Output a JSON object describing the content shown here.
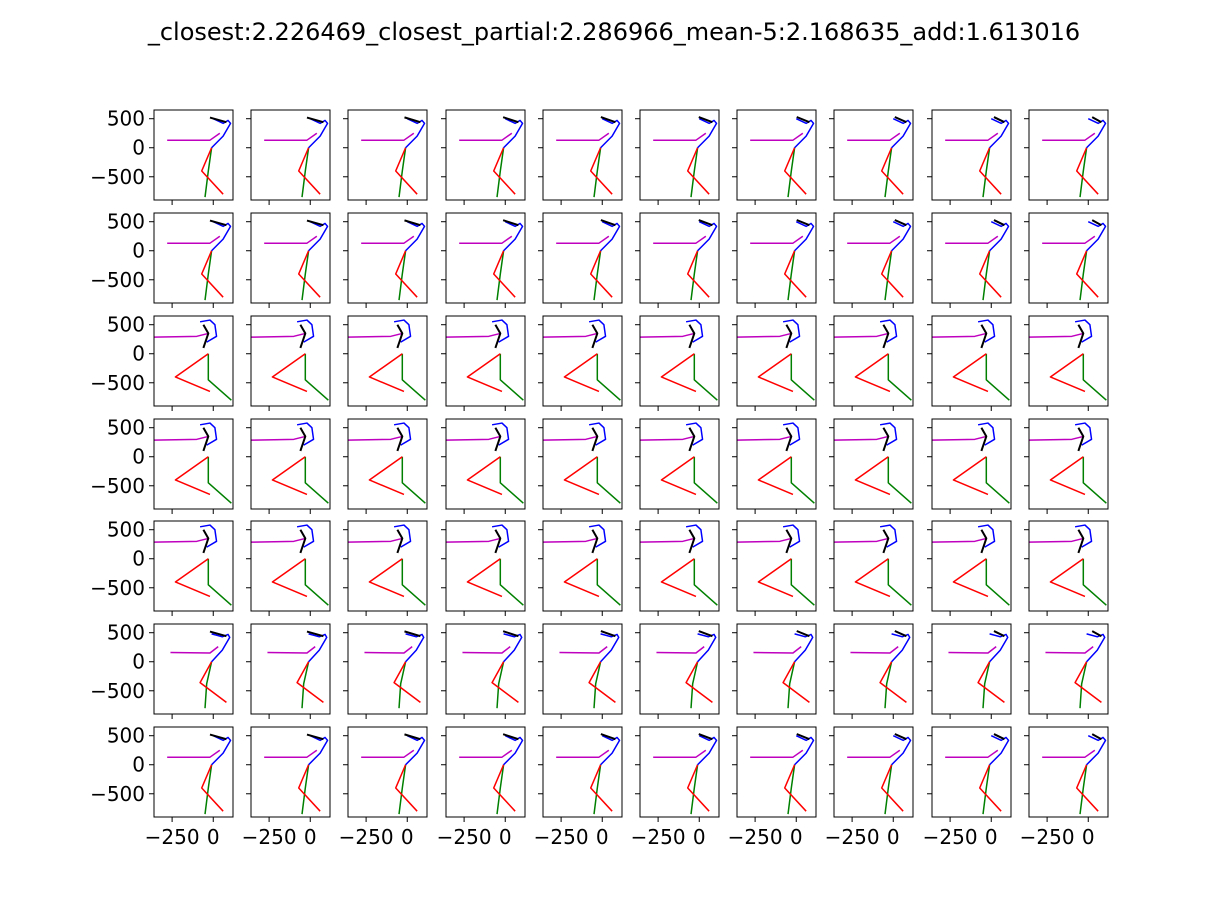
{
  "chart_data": {
    "type": "line",
    "title": "_closest:2.226469_closest_partial:2.286966_mean-5:2.168635_add:1.613016",
    "layout": "grid",
    "grid_rows": 7,
    "grid_cols": 10,
    "xlim": [
      -360,
      120
    ],
    "ylim": [
      -900,
      650
    ],
    "x_ticks": [
      -250,
      0
    ],
    "x_tick_labels": [
      "−250",
      "0"
    ],
    "y_ticks": [
      500,
      0,
      -500
    ],
    "y_tick_labels": [
      "500",
      "0",
      "−500"
    ],
    "grid": false,
    "legend": "none",
    "segment_colors": {
      "head": "#000000",
      "spine": "#0000ff",
      "arm": "#bf00bf",
      "leg_a": "#ff0000",
      "leg_b": "#008000"
    },
    "poses": {
      "A": {
        "spine": [
          [
            -10,
            0
          ],
          [
            60,
            200
          ],
          [
            105,
            420
          ],
          [
            90,
            470
          ],
          [
            60,
            420
          ],
          [
            0,
            500
          ]
        ],
        "arm": [
          [
            -280,
            130
          ],
          [
            -20,
            130
          ],
          [
            40,
            250
          ]
        ],
        "leg_a": [
          [
            -10,
            0
          ],
          [
            -70,
            -400
          ],
          [
            60,
            -800
          ]
        ],
        "leg_b": [
          [
            -10,
            0
          ],
          [
            -30,
            -400
          ],
          [
            -50,
            -850
          ]
        ],
        "head": [
          [
            80,
            440
          ],
          [
            -20,
            520
          ]
        ]
      },
      "B": {
        "spine": [
          [
            -80,
            550
          ],
          [
            -20,
            580
          ],
          [
            10,
            500
          ],
          [
            20,
            300
          ],
          [
            -40,
            200
          ]
        ],
        "arm": [
          [
            -450,
            280
          ],
          [
            -100,
            300
          ],
          [
            -30,
            350
          ]
        ],
        "leg_a": [
          [
            -30,
            0
          ],
          [
            -230,
            -400
          ],
          [
            -20,
            -650
          ]
        ],
        "leg_b": [
          [
            -30,
            0
          ],
          [
            -30,
            -450
          ],
          [
            110,
            -800
          ]
        ],
        "head": [
          [
            -60,
            500
          ],
          [
            -30,
            350
          ],
          [
            -60,
            100
          ]
        ]
      },
      "C": {
        "spine": [
          [
            -10,
            0
          ],
          [
            55,
            200
          ],
          [
            100,
            420
          ],
          [
            90,
            470
          ],
          [
            55,
            430
          ],
          [
            -10,
            480
          ]
        ],
        "arm": [
          [
            -260,
            160
          ],
          [
            -20,
            150
          ],
          [
            30,
            260
          ]
        ],
        "leg_a": [
          [
            -10,
            0
          ],
          [
            -80,
            -360
          ],
          [
            80,
            -700
          ]
        ],
        "leg_b": [
          [
            -10,
            0
          ],
          [
            -40,
            -380
          ],
          [
            -50,
            -800
          ]
        ],
        "head": [
          [
            80,
            440
          ],
          [
            -20,
            520
          ]
        ]
      }
    },
    "row_poses": [
      "A",
      "A",
      "B",
      "B",
      "B",
      "C",
      "A"
    ],
    "head_angle_progression": [
      0,
      0,
      -5,
      -10,
      -15,
      -20,
      -25,
      -30,
      -35,
      -40
    ]
  }
}
